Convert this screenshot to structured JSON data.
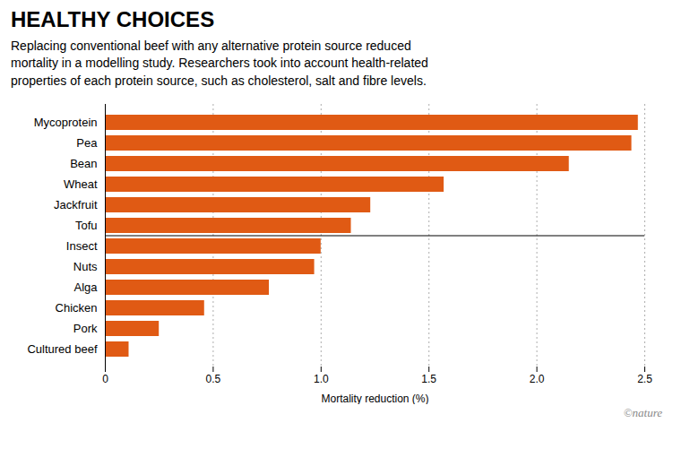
{
  "chart_data": {
    "type": "bar",
    "orientation": "horizontal",
    "title": "HEALTHY CHOICES",
    "subtitle": "Replacing conventional beef with any alternative protein source reduced\nmortality in a modelling study. Researchers took into account health-related\nproperties of each protein source, such as cholesterol, salt and fibre levels.",
    "annotations": [
      "©nature"
    ],
    "categories": [
      "Cultured beef",
      "Pork",
      "Chicken",
      "Alga",
      "Nuts",
      "Insect",
      "Tofu",
      "Jackfruit",
      "Wheat",
      "Bean",
      "Pea",
      "Mycoprotein"
    ],
    "values": [
      0.11,
      0.25,
      0.46,
      0.76,
      0.97,
      1.0,
      1.14,
      1.23,
      1.57,
      2.15,
      2.44,
      2.47
    ],
    "color": "#E05A14",
    "xlabel": "Mortality reduction (%)",
    "xlim": [
      0,
      2.5
    ],
    "xticks": [
      0,
      0.5,
      {
        "value": 1,
        "label": "1.0"
      },
      1.5,
      {
        "value": 2,
        "label": "2.0"
      },
      2.5
    ],
    "grid": true
  }
}
